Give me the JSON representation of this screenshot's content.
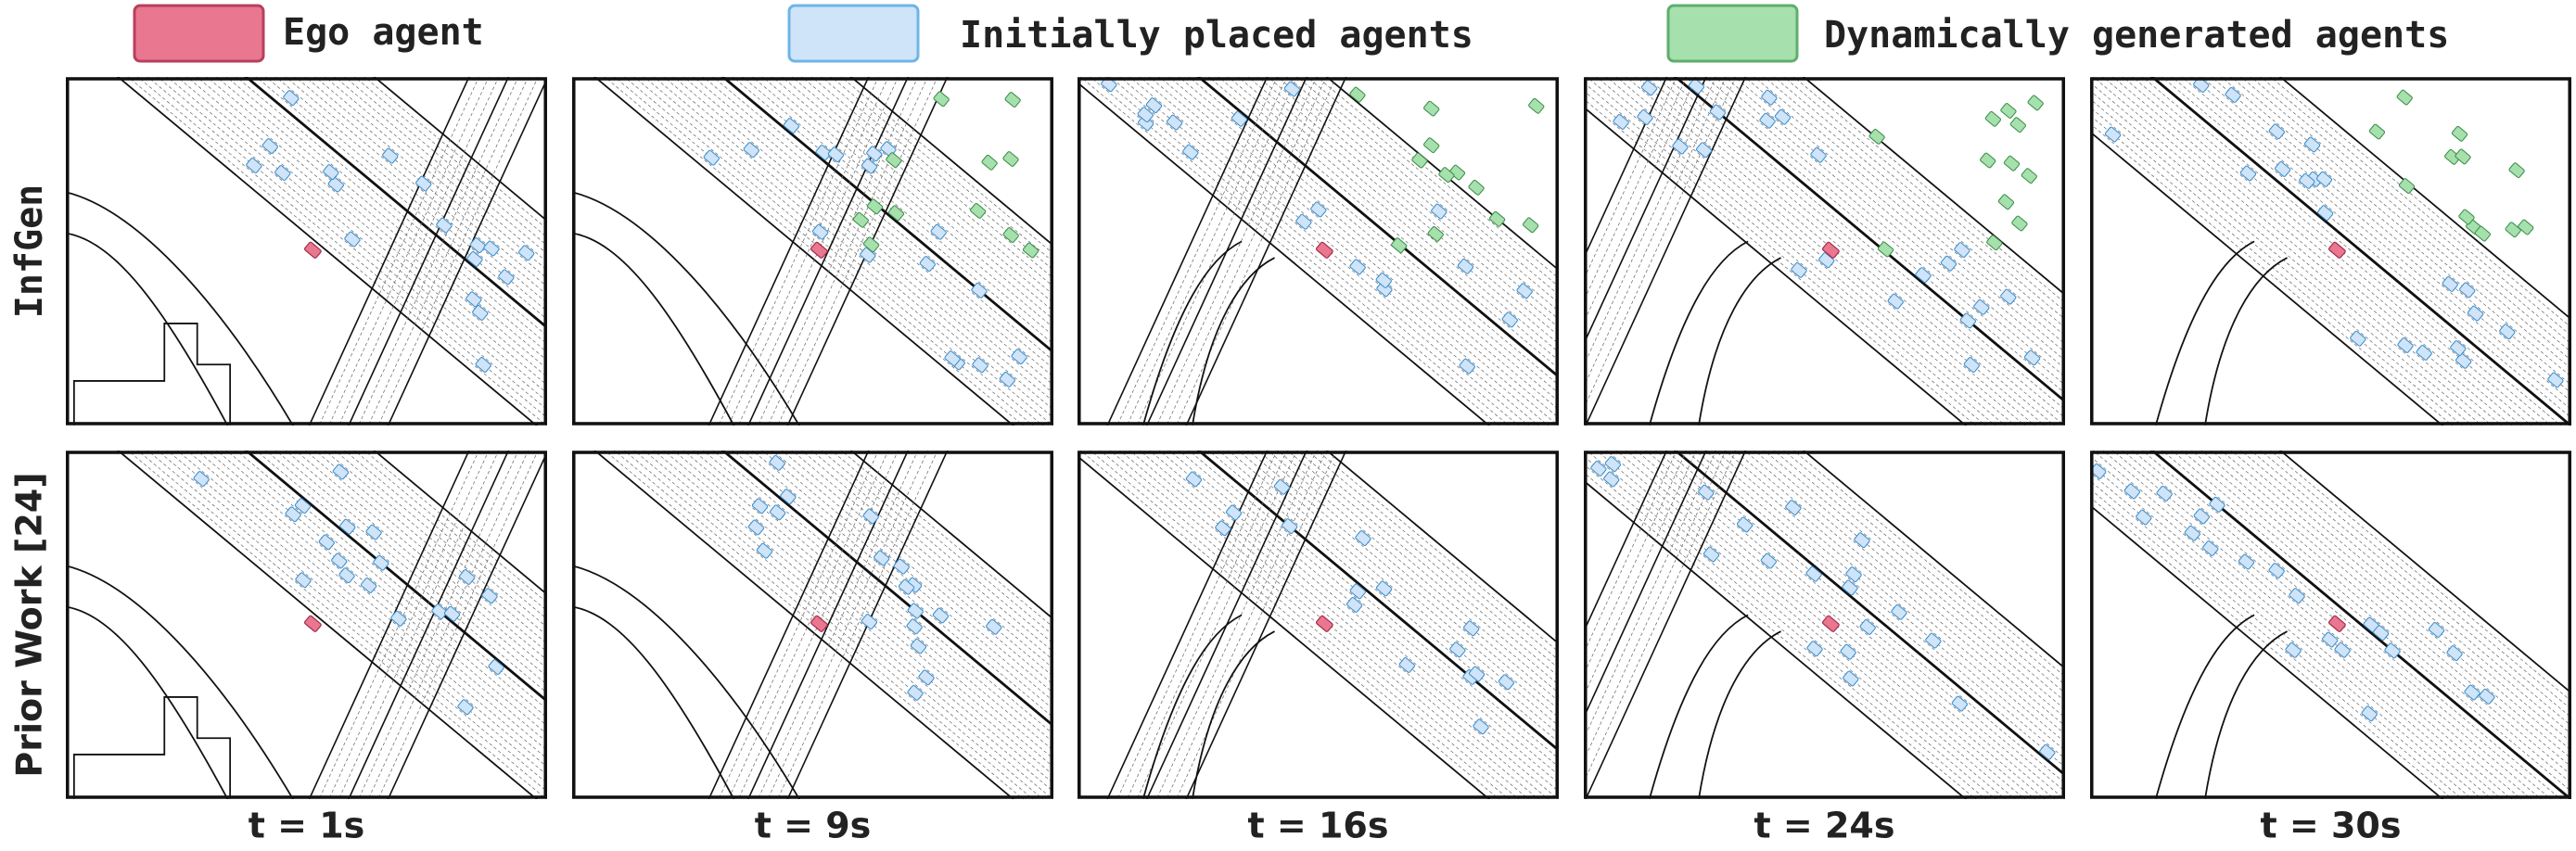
{
  "legend": [
    {
      "label": "Ego agent"
    },
    {
      "label": "Initially placed agents"
    },
    {
      "label": "Dynamically generated agents"
    }
  ],
  "rows": [
    "InfGen",
    "Prior Work [24]"
  ],
  "columns": [
    "t = 1s",
    "t = 9s",
    "t = 16s",
    "t = 24s",
    "t = 30s"
  ]
}
